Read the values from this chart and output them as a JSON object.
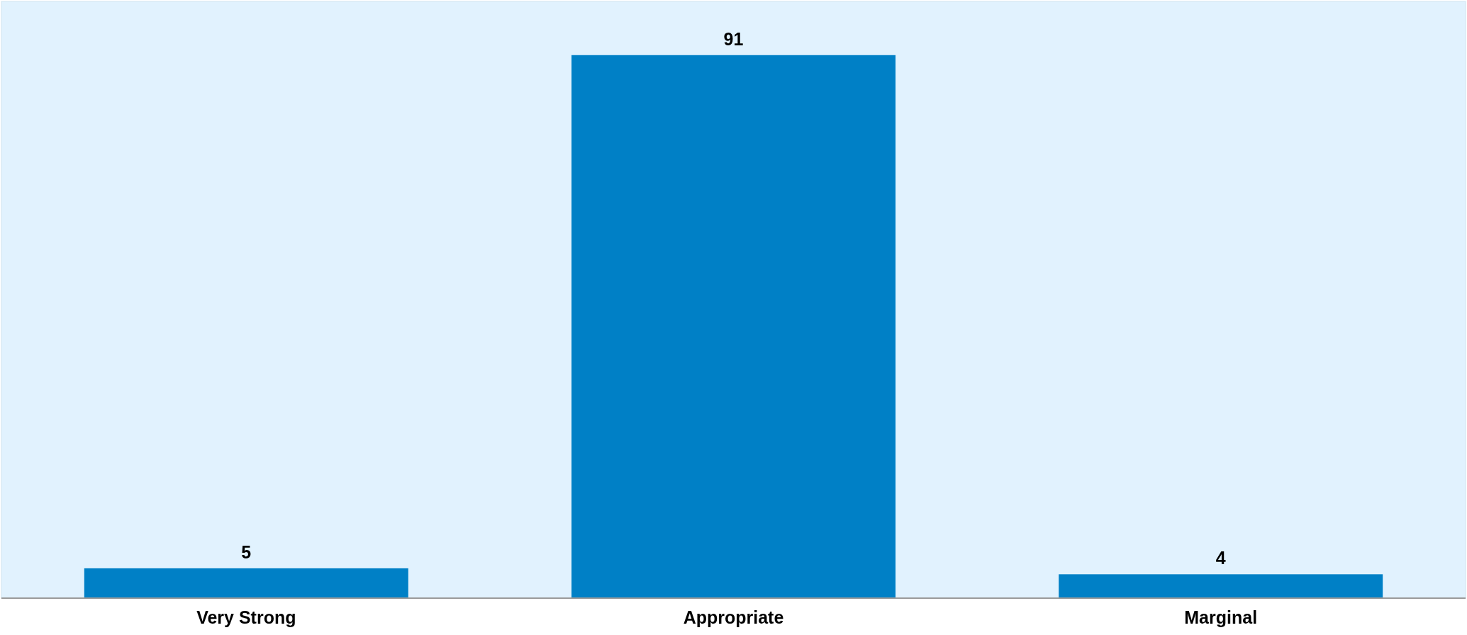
{
  "chart_data": {
    "type": "bar",
    "categories": [
      "Very Strong",
      "Appropriate",
      "Marginal"
    ],
    "values": [
      5,
      91,
      4
    ],
    "color": "#0080c6",
    "ylim": [
      0,
      100
    ],
    "data_labels": true,
    "tick_labels": "x"
  }
}
